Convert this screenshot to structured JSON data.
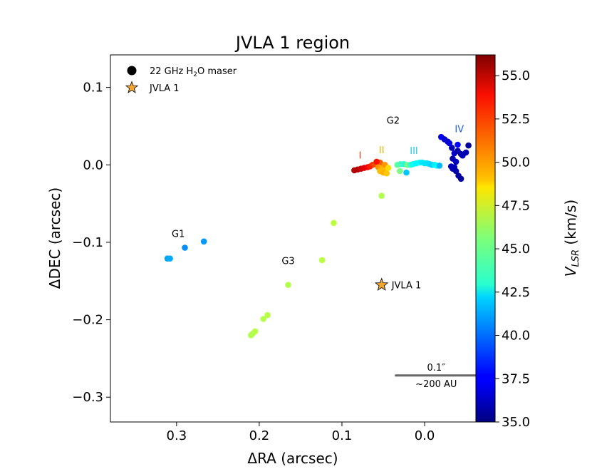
{
  "chart_data": {
    "type": "scatter",
    "title": "JVLA 1 region",
    "xlabel": "ΔRA (arcsec)",
    "ylabel": "ΔDEC (arcsec)",
    "xlim": [
      0.38,
      -0.062
    ],
    "ylim": [
      -0.332,
      0.142
    ],
    "x_ticks": [
      {
        "v": 0.3,
        "label": "0.3"
      },
      {
        "v": 0.2,
        "label": "0.2"
      },
      {
        "v": 0.1,
        "label": "0.1"
      },
      {
        "v": 0.0,
        "label": "0.0"
      }
    ],
    "y_ticks": [
      {
        "v": 0.1,
        "label": "0.1"
      },
      {
        "v": 0.0,
        "label": "0.0"
      },
      {
        "v": -0.1,
        "label": "−0.1"
      },
      {
        "v": -0.2,
        "label": "−0.2"
      },
      {
        "v": -0.3,
        "label": "−0.3"
      }
    ],
    "colorbar": {
      "label": "V_LSR (km/s)",
      "label_main": "V",
      "label_sub": "LSR",
      "label_tail": " (km/s)",
      "min": 35.0,
      "max": 56.2,
      "ticks": [
        {
          "v": 55.0,
          "label": "55.0"
        },
        {
          "v": 52.5,
          "label": "52.5"
        },
        {
          "v": 50.0,
          "label": "50.0"
        },
        {
          "v": 47.5,
          "label": "47.5"
        },
        {
          "v": 45.0,
          "label": "45.0"
        },
        {
          "v": 42.5,
          "label": "42.5"
        },
        {
          "v": 40.0,
          "label": "40.0"
        },
        {
          "v": 37.5,
          "label": "37.5"
        },
        {
          "v": 35.0,
          "label": "35.0"
        }
      ]
    },
    "legend": {
      "placement": "top-left",
      "entries": [
        {
          "marker": "circle",
          "label_pre": "22 GHz H",
          "label_sub": "2",
          "label_post": "O maser",
          "label": "22 GHz H2O maser"
        },
        {
          "marker": "star",
          "label": "JVLA 1"
        }
      ]
    },
    "star": {
      "x": 0.052,
      "y": -0.155,
      "label": "JVLA 1"
    },
    "annotations": [
      {
        "text": "G2",
        "x": 0.038,
        "y": 0.053,
        "color": "#000000"
      },
      {
        "text": "G1",
        "x": 0.298,
        "y": -0.093,
        "color": "#000000"
      },
      {
        "text": "G3",
        "x": 0.165,
        "y": -0.128,
        "color": "#000000"
      },
      {
        "text": "I",
        "x": 0.078,
        "y": 0.008,
        "color": "#e8381b"
      },
      {
        "text": "II",
        "x": 0.052,
        "y": 0.015,
        "color": "#f0b400"
      },
      {
        "text": "III",
        "x": 0.013,
        "y": 0.014,
        "color": "#1ec8e8"
      },
      {
        "text": "IV",
        "x": -0.042,
        "y": 0.042,
        "color": "#1f5fe8"
      }
    ],
    "scalebar": {
      "length_arcsec": 0.1,
      "x_start": 0.036,
      "y": -0.272,
      "label_top": "0.1″",
      "label_bottom": "~200 AU"
    },
    "masers": [
      {
        "x": 0.085,
        "y": -0.007,
        "v": 55.0
      },
      {
        "x": 0.081,
        "y": -0.006,
        "v": 55.2
      },
      {
        "x": 0.077,
        "y": -0.005,
        "v": 54.6
      },
      {
        "x": 0.073,
        "y": -0.004,
        "v": 54.2
      },
      {
        "x": 0.069,
        "y": -0.003,
        "v": 53.6
      },
      {
        "x": 0.066,
        "y": -0.002,
        "v": 53.0
      },
      {
        "x": 0.063,
        "y": 0.0,
        "v": 52.5
      },
      {
        "x": 0.06,
        "y": 0.001,
        "v": 52.0
      },
      {
        "x": 0.057,
        "y": 0.002,
        "v": 51.5
      },
      {
        "x": 0.054,
        "y": 0.003,
        "v": 51.5
      },
      {
        "x": 0.058,
        "y": 0.004,
        "v": 53.2
      },
      {
        "x": 0.056,
        "y": -0.003,
        "v": 50.6
      },
      {
        "x": 0.053,
        "y": -0.004,
        "v": 50.2
      },
      {
        "x": 0.05,
        "y": -0.005,
        "v": 49.8
      },
      {
        "x": 0.047,
        "y": -0.006,
        "v": 49.5
      },
      {
        "x": 0.054,
        "y": -0.008,
        "v": 49.6
      },
      {
        "x": 0.05,
        "y": -0.01,
        "v": 49.9
      },
      {
        "x": 0.046,
        "y": -0.011,
        "v": 49.4
      },
      {
        "x": 0.048,
        "y": 0.0,
        "v": 50.4
      },
      {
        "x": 0.044,
        "y": -0.004,
        "v": 49.0
      },
      {
        "x": 0.033,
        "y": 0.0,
        "v": 45.0
      },
      {
        "x": 0.029,
        "y": 0.001,
        "v": 44.3
      },
      {
        "x": 0.025,
        "y": 0.001,
        "v": 43.8
      },
      {
        "x": 0.021,
        "y": 0.0,
        "v": 45.5
      },
      {
        "x": 0.017,
        "y": 0.0,
        "v": 44.0
      },
      {
        "x": 0.014,
        "y": 0.001,
        "v": 43.2
      },
      {
        "x": 0.01,
        "y": 0.002,
        "v": 42.8
      },
      {
        "x": 0.006,
        "y": 0.003,
        "v": 42.8
      },
      {
        "x": 0.003,
        "y": 0.003,
        "v": 42.5
      },
      {
        "x": 0.0,
        "y": 0.002,
        "v": 42.4
      },
      {
        "x": -0.003,
        "y": 0.002,
        "v": 42.3
      },
      {
        "x": -0.006,
        "y": 0.001,
        "v": 42.2
      },
      {
        "x": -0.009,
        "y": 0.0,
        "v": 42.0
      },
      {
        "x": -0.012,
        "y": 0.0,
        "v": 42.6
      },
      {
        "x": -0.015,
        "y": -0.001,
        "v": 43.0
      },
      {
        "x": -0.018,
        "y": -0.001,
        "v": 41.5
      },
      {
        "x": 0.03,
        "y": -0.008,
        "v": 45.5
      },
      {
        "x": 0.022,
        "y": -0.01,
        "v": 41.8
      },
      {
        "x": 0.052,
        "y": -0.04,
        "v": 46.6
      },
      {
        "x": -0.02,
        "y": 0.036,
        "v": 37.5
      },
      {
        "x": -0.024,
        "y": 0.033,
        "v": 36.8
      },
      {
        "x": -0.028,
        "y": 0.03,
        "v": 36.5
      },
      {
        "x": -0.033,
        "y": 0.022,
        "v": 36.2
      },
      {
        "x": -0.036,
        "y": 0.015,
        "v": 36.6
      },
      {
        "x": -0.034,
        "y": 0.008,
        "v": 36.0
      },
      {
        "x": -0.038,
        "y": 0.004,
        "v": 36.3
      },
      {
        "x": -0.04,
        "y": 0.018,
        "v": 35.8
      },
      {
        "x": -0.044,
        "y": 0.014,
        "v": 35.9
      },
      {
        "x": -0.05,
        "y": 0.016,
        "v": 36.0
      },
      {
        "x": -0.053,
        "y": 0.025,
        "v": 35.6
      },
      {
        "x": -0.04,
        "y": 0.026,
        "v": 37.8
      },
      {
        "x": -0.032,
        "y": -0.002,
        "v": 36.4
      },
      {
        "x": -0.034,
        "y": -0.005,
        "v": 36.0
      },
      {
        "x": -0.038,
        "y": -0.008,
        "v": 35.8
      },
      {
        "x": -0.041,
        "y": -0.014,
        "v": 35.7
      },
      {
        "x": -0.044,
        "y": -0.018,
        "v": 35.6
      },
      {
        "x": -0.036,
        "y": -0.003,
        "v": 36.2
      },
      {
        "x": -0.03,
        "y": 0.028,
        "v": 37.0
      },
      {
        "x": -0.046,
        "y": 0.012,
        "v": 36.1
      },
      {
        "x": 0.311,
        "y": -0.121,
        "v": 41.0
      },
      {
        "x": 0.308,
        "y": -0.121,
        "v": 41.2
      },
      {
        "x": 0.29,
        "y": -0.107,
        "v": 40.6
      },
      {
        "x": 0.267,
        "y": -0.099,
        "v": 40.8
      },
      {
        "x": 0.11,
        "y": -0.075,
        "v": 46.9
      },
      {
        "x": 0.124,
        "y": -0.123,
        "v": 46.8
      },
      {
        "x": 0.165,
        "y": -0.155,
        "v": 46.7
      },
      {
        "x": 0.19,
        "y": -0.194,
        "v": 46.8
      },
      {
        "x": 0.195,
        "y": -0.199,
        "v": 46.7
      },
      {
        "x": 0.205,
        "y": -0.215,
        "v": 46.8
      },
      {
        "x": 0.208,
        "y": -0.218,
        "v": 46.7
      },
      {
        "x": 0.21,
        "y": -0.22,
        "v": 46.6
      }
    ]
  }
}
